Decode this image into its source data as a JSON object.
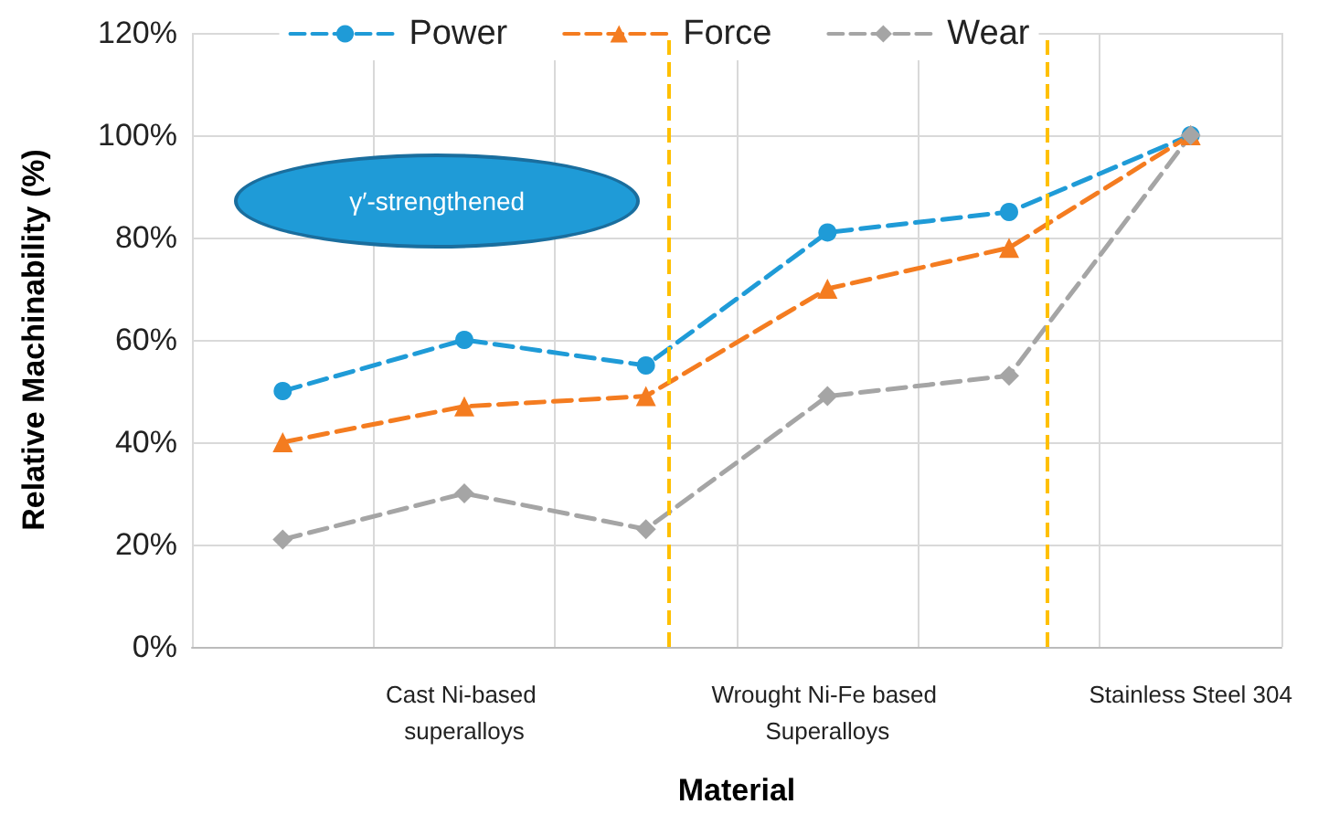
{
  "chart_data": {
    "type": "line",
    "xlabel": "Material",
    "ylabel": "Relative Machinability (%)",
    "categories": [
      null,
      "Cast Ni-based superalloys",
      null,
      "Wrought Ni-Fe based Superalloys",
      null,
      "Stainless Steel 304"
    ],
    "series": [
      {
        "name": "Power",
        "color": "#1f9bd7",
        "marker": "circle",
        "values": [
          50,
          60,
          55,
          81,
          85,
          100
        ]
      },
      {
        "name": "Force",
        "color": "#f47c20",
        "marker": "triangle",
        "values": [
          40,
          47,
          49,
          70,
          78,
          100
        ]
      },
      {
        "name": "Wear",
        "color": "#a5a5a5",
        "marker": "diamond",
        "values": [
          21,
          30,
          23,
          49,
          53,
          100
        ]
      }
    ],
    "ylim": [
      0,
      120
    ],
    "yticks": [
      {
        "value": 0,
        "label": "0%"
      },
      {
        "value": 20,
        "label": "20%"
      },
      {
        "value": 40,
        "label": "40%"
      },
      {
        "value": 60,
        "label": "60%"
      },
      {
        "value": 80,
        "label": "80%"
      },
      {
        "value": 100,
        "label": "100%"
      },
      {
        "value": 120,
        "label": "120%"
      }
    ],
    "annotations": [
      "γ′-strengthened"
    ],
    "grid": true,
    "legend": "top",
    "line_style": "dashed"
  }
}
